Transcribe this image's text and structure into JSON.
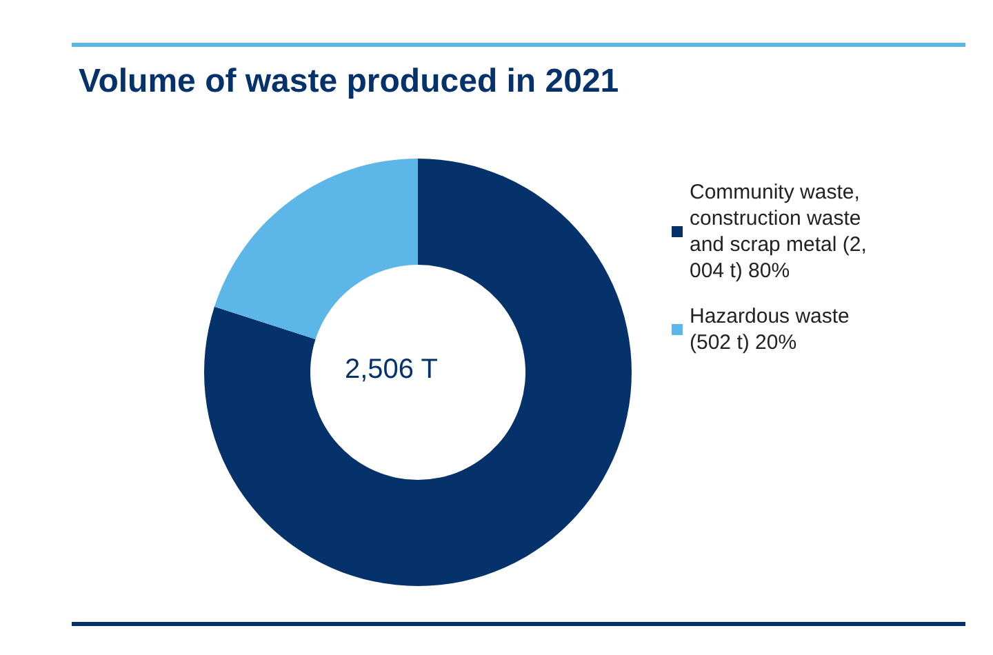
{
  "chart_data": {
    "type": "donut",
    "title": "Volume of waste produced in 2021",
    "categories": [
      "Community waste, construction waste and scrap metal (2,004 t) 80%",
      "Hazardous waste (502 t) 20%"
    ],
    "values": [
      2004,
      502
    ],
    "colors": [
      "#06326b",
      "#5cb6e8"
    ],
    "annotations": [
      "2,506 T"
    ],
    "legend": "right"
  }
}
